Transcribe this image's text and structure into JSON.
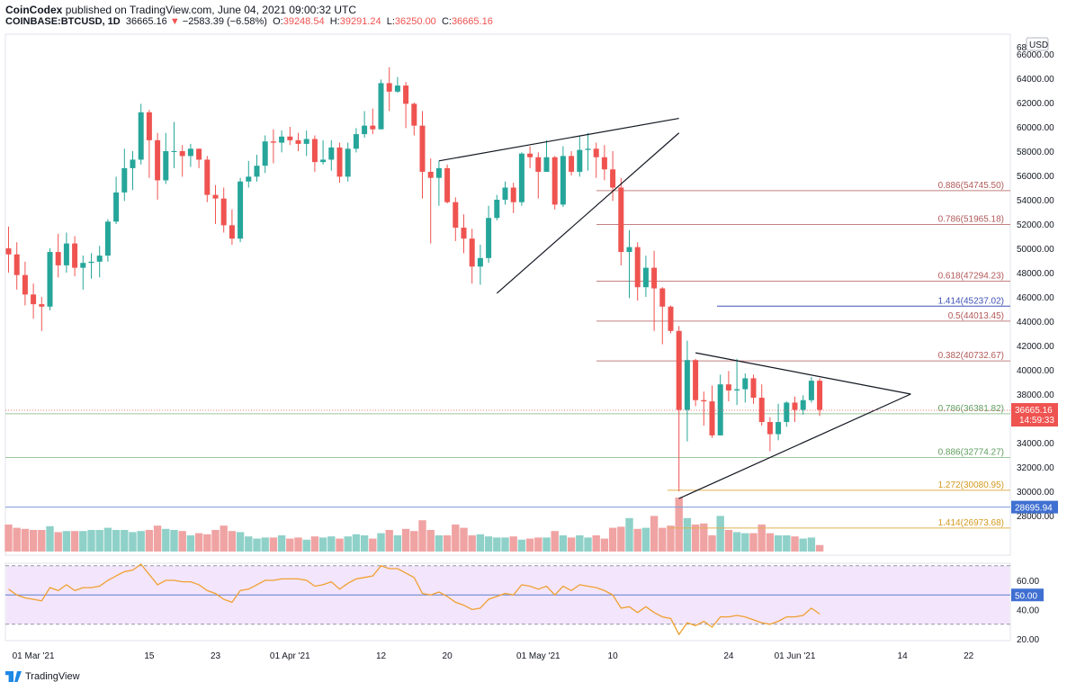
{
  "header": {
    "publisher": "CoinCodex",
    "published_text": "published on TradingView.com, June 04, 2021 09:00:32 UTC",
    "symbol": "COINBASE:BTCUSD, 1D",
    "last": "36665.16",
    "change": "−2583.39 (−6.58%)",
    "open_label": "O:",
    "open": "39248.54",
    "high_label": "H:",
    "high": "39291.24",
    "low_label": "L:",
    "low": "36250.00",
    "close_label": "C:",
    "close": "36665.16"
  },
  "footer": {
    "brand": "TradingView"
  },
  "colors": {
    "up": "#26a69a",
    "down": "#ef5350",
    "vol_up": "#8fd1c9",
    "vol_down": "#f0a3a3",
    "fib_red": "#c48080",
    "fib_green": "#9cc79c",
    "fib_orange": "#e0b050",
    "fib_blue": "#3f51b5",
    "rsi": "#f0a030",
    "rsi_band": "#f3e5fc",
    "line_blue": "#7b9ad9"
  },
  "chart_data": {
    "type": "candlestick",
    "currency_label": "USD",
    "y_ticks": [
      "66000.00",
      "64000.00",
      "62000.00",
      "60000.00",
      "58000.00",
      "56000.00",
      "54000.00",
      "52000.00",
      "50000.00",
      "48000.00",
      "46000.00",
      "44000.00",
      "42000.00",
      "40000.00",
      "38000.00",
      "34000.00",
      "32000.00",
      "30000.00",
      "28000.00"
    ],
    "y_top_tick": "68",
    "ylim": [
      26500,
      68500
    ],
    "x_ticks": [
      {
        "label": "01 Mar '21",
        "index": 3
      },
      {
        "label": "15",
        "index": 17
      },
      {
        "label": "23",
        "index": 25
      },
      {
        "label": "01 Apr '21",
        "index": 34
      },
      {
        "label": "12",
        "index": 45
      },
      {
        "label": "20",
        "index": 53
      },
      {
        "label": "01 May '21",
        "index": 64
      },
      {
        "label": "10",
        "index": 73
      },
      {
        "label": "24",
        "index": 87
      },
      {
        "label": "01 Jun '21",
        "index": 95
      },
      {
        "label": "14",
        "index": 108
      },
      {
        "label": "22",
        "index": 116
      }
    ],
    "candles": [
      [
        50000,
        49500,
        51800,
        48000
      ],
      [
        49500,
        47800,
        50500,
        46600
      ],
      [
        47800,
        46200,
        48900,
        45300
      ],
      [
        46200,
        45400,
        47100,
        44200
      ],
      [
        45400,
        45200,
        46000,
        43200
      ],
      [
        45200,
        49700,
        50000,
        44900
      ],
      [
        49700,
        48600,
        51200,
        47600
      ],
      [
        48600,
        50400,
        51300,
        48000
      ],
      [
        50400,
        48400,
        51000,
        47700
      ],
      [
        48400,
        48800,
        49400,
        46600
      ],
      [
        48800,
        48900,
        49600,
        47500
      ],
      [
        48900,
        49400,
        50200,
        47600
      ],
      [
        49400,
        52200,
        52400,
        48900
      ],
      [
        52200,
        54600,
        55900,
        52000
      ],
      [
        54600,
        56600,
        58200,
        53900
      ],
      [
        56600,
        57300,
        58000,
        54800
      ],
      [
        57300,
        61200,
        61900,
        56900
      ],
      [
        61200,
        58900,
        61400,
        55800
      ],
      [
        58900,
        55600,
        59500,
        54000
      ],
      [
        55600,
        58000,
        59500,
        55300
      ],
      [
        58000,
        58000,
        60400,
        56600
      ],
      [
        58000,
        57600,
        58500,
        55900
      ],
      [
        57600,
        58200,
        58600,
        56700
      ],
      [
        58200,
        57300,
        58200,
        56600
      ],
      [
        57300,
        54400,
        57600,
        53800
      ],
      [
        54400,
        54100,
        55200,
        52000
      ],
      [
        54100,
        51900,
        55000,
        51300
      ],
      [
        51900,
        50800,
        53200,
        50300
      ],
      [
        50800,
        55500,
        55800,
        50500
      ],
      [
        55500,
        55900,
        57200,
        55000
      ],
      [
        55900,
        56800,
        57700,
        55500
      ],
      [
        56800,
        58800,
        59300,
        56200
      ],
      [
        58800,
        58700,
        59800,
        57000
      ],
      [
        58700,
        59200,
        59700,
        57900
      ],
      [
        59200,
        58900,
        60000,
        58500
      ],
      [
        58900,
        58600,
        59500,
        58000
      ],
      [
        58600,
        59000,
        59700,
        57600
      ],
      [
        59000,
        57100,
        59300,
        56300
      ],
      [
        57100,
        57300,
        58900,
        56900
      ],
      [
        57300,
        58300,
        58900,
        56400
      ],
      [
        58300,
        55900,
        58700,
        55400
      ],
      [
        55900,
        58200,
        58700,
        55500
      ],
      [
        58200,
        59400,
        59900,
        57900
      ],
      [
        59400,
        60100,
        61300,
        59100
      ],
      [
        60100,
        59800,
        61500,
        59400
      ],
      [
        59800,
        63600,
        63900,
        59800
      ],
      [
        63600,
        62900,
        64900,
        61300
      ],
      [
        62900,
        63400,
        64100,
        62800
      ],
      [
        63400,
        61900,
        63700,
        59900
      ],
      [
        61900,
        60100,
        62000,
        59300
      ],
      [
        60100,
        56300,
        61300,
        54100
      ],
      [
        56300,
        55800,
        57400,
        50400
      ],
      [
        55800,
        56600,
        57200,
        53500
      ],
      [
        56600,
        53800,
        56900,
        53700
      ],
      [
        53800,
        51700,
        54200,
        50600
      ],
      [
        51700,
        50800,
        52800,
        49600
      ],
      [
        50800,
        48500,
        51600,
        47100
      ],
      [
        48500,
        49200,
        50300,
        47000
      ],
      [
        49200,
        52500,
        53500,
        48800
      ],
      [
        52500,
        54000,
        54400,
        52300
      ],
      [
        54000,
        55000,
        55500,
        53600
      ],
      [
        55000,
        53800,
        55400,
        52900
      ],
      [
        53800,
        57800,
        57900,
        53500
      ],
      [
        57800,
        57500,
        58400,
        56600
      ],
      [
        57500,
        56300,
        57900,
        54100
      ],
      [
        56300,
        57500,
        58900,
        56300
      ],
      [
        57500,
        53600,
        57600,
        53200
      ],
      [
        53600,
        57600,
        58400,
        53400
      ],
      [
        57600,
        56300,
        58000,
        56000
      ],
      [
        56300,
        58100,
        59300,
        55900
      ],
      [
        58100,
        58200,
        59500,
        56400
      ],
      [
        58200,
        57500,
        58700,
        55800
      ],
      [
        57500,
        56500,
        58500,
        55600
      ],
      [
        56500,
        55000,
        58000,
        53900
      ],
      [
        55000,
        49700,
        55800,
        48600
      ],
      [
        49700,
        50100,
        51500,
        45900
      ],
      [
        50100,
        46800,
        50500,
        45700
      ],
      [
        46800,
        48400,
        49400,
        46000
      ],
      [
        48400,
        46700,
        49800,
        43200
      ],
      [
        46700,
        45200,
        46800,
        42100
      ],
      [
        45200,
        43200,
        45300,
        43000
      ],
      [
        43200,
        36700,
        43600,
        30000
      ],
      [
        36700,
        40800,
        42400,
        34100
      ],
      [
        40800,
        37500,
        40900,
        37000
      ],
      [
        37500,
        37400,
        38200,
        35400
      ],
      [
        37400,
        34600,
        38700,
        34400
      ],
      [
        34600,
        38800,
        39600,
        34600
      ],
      [
        38800,
        38300,
        39900,
        37400
      ],
      [
        38300,
        38400,
        40900,
        37100
      ],
      [
        38400,
        39300,
        39700,
        37300
      ],
      [
        39300,
        37700,
        39600,
        37200
      ],
      [
        37700,
        35700,
        38800,
        35400
      ],
      [
        35700,
        34700,
        36100,
        33300
      ],
      [
        34700,
        35700,
        37200,
        34200
      ],
      [
        35700,
        37300,
        37400,
        35300
      ],
      [
        37300,
        36700,
        37800,
        35700
      ],
      [
        36700,
        37500,
        37900,
        36300
      ],
      [
        37500,
        39100,
        39400,
        37300
      ],
      [
        39100,
        36700,
        39300,
        36200
      ]
    ],
    "volumes": [
      0.5,
      0.44,
      0.42,
      0.4,
      0.4,
      0.47,
      0.36,
      0.38,
      0.38,
      0.38,
      0.4,
      0.4,
      0.44,
      0.4,
      0.4,
      0.36,
      0.38,
      0.4,
      0.48,
      0.42,
      0.4,
      0.38,
      0.3,
      0.34,
      0.32,
      0.4,
      0.48,
      0.38,
      0.36,
      0.28,
      0.24,
      0.26,
      0.26,
      0.3,
      0.24,
      0.26,
      0.22,
      0.28,
      0.26,
      0.28,
      0.24,
      0.28,
      0.32,
      0.3,
      0.24,
      0.34,
      0.4,
      0.3,
      0.42,
      0.38,
      0.58,
      0.4,
      0.3,
      0.3,
      0.5,
      0.44,
      0.3,
      0.32,
      0.28,
      0.26,
      0.26,
      0.28,
      0.22,
      0.24,
      0.26,
      0.26,
      0.38,
      0.3,
      0.26,
      0.3,
      0.26,
      0.3,
      0.24,
      0.44,
      0.46,
      0.62,
      0.42,
      0.44,
      0.66,
      0.44,
      0.48,
      1.0,
      0.62,
      0.5,
      0.52,
      0.3,
      0.66,
      0.4,
      0.36,
      0.34,
      0.34,
      0.5,
      0.34,
      0.3,
      0.3,
      0.28,
      0.24,
      0.26,
      0.12
    ],
    "rsi": [
      54,
      50,
      48,
      47,
      46,
      55,
      53,
      57,
      53,
      55,
      55,
      56,
      60,
      63,
      66,
      67,
      71,
      64,
      57,
      60,
      60,
      59,
      59,
      57,
      53,
      51,
      47,
      45,
      53,
      54,
      57,
      60,
      60,
      61,
      61,
      61,
      60,
      56,
      57,
      59,
      54,
      58,
      61,
      62,
      63,
      70,
      68,
      68,
      65,
      62,
      51,
      50,
      52,
      49,
      45,
      43,
      40,
      41,
      47,
      49,
      51,
      50,
      57,
      56,
      54,
      56,
      50,
      56,
      53,
      57,
      56,
      55,
      53,
      50,
      41,
      42,
      38,
      42,
      38,
      35,
      34,
      23,
      31,
      29,
      32,
      28,
      35,
      35,
      36,
      35,
      33,
      31,
      30,
      32,
      35,
      35,
      36,
      41,
      37
    ],
    "rsi_ticks": [
      "60.00",
      "40.00",
      "20.00"
    ],
    "rsi_level_label": "50.00",
    "rsi_levels": [
      70,
      50,
      30
    ],
    "fib_levels": [
      {
        "label": "0.886(54745.50)",
        "value": 54745.5,
        "color": "fib_red"
      },
      {
        "label": "0.786(51965.18)",
        "value": 51965.18,
        "color": "fib_red"
      },
      {
        "label": "0.618(47294.23)",
        "value": 47294.23,
        "color": "fib_red"
      },
      {
        "label": "1.414(45237.02)",
        "value": 45237.02,
        "color": "fib_blue"
      },
      {
        "label": "0.5(44013.45)",
        "value": 44013.45,
        "color": "fib_red"
      },
      {
        "label": "0.382(40732.67)",
        "value": 40732.67,
        "color": "fib_red"
      },
      {
        "label": "0.786(36381.82)",
        "value": 36381.82,
        "color": "fib_green"
      },
      {
        "label": "0.886(32774.27)",
        "value": 32774.27,
        "color": "fib_green"
      },
      {
        "label": "1.272(30080.95)",
        "value": 30080.95,
        "color": "fib_orange"
      },
      {
        "label": "1.414(26973.68)",
        "value": 26973.68,
        "color": "fib_orange"
      }
    ],
    "horizontal_line": {
      "label": "28695.94",
      "value": 28695.94
    },
    "price_tag": {
      "price": "36665.16",
      "countdown": "14:59:33",
      "value": 36665.16
    },
    "trendlines": [
      {
        "from": [
          52,
          57200
        ],
        "to": [
          81,
          60700
        ]
      },
      {
        "from": [
          59,
          46300
        ],
        "to": [
          81,
          59500
        ]
      },
      {
        "from": [
          83,
          41400
        ],
        "to": [
          109,
          38000
        ]
      },
      {
        "from": [
          81,
          29400
        ],
        "to": [
          109,
          38000
        ]
      }
    ]
  }
}
